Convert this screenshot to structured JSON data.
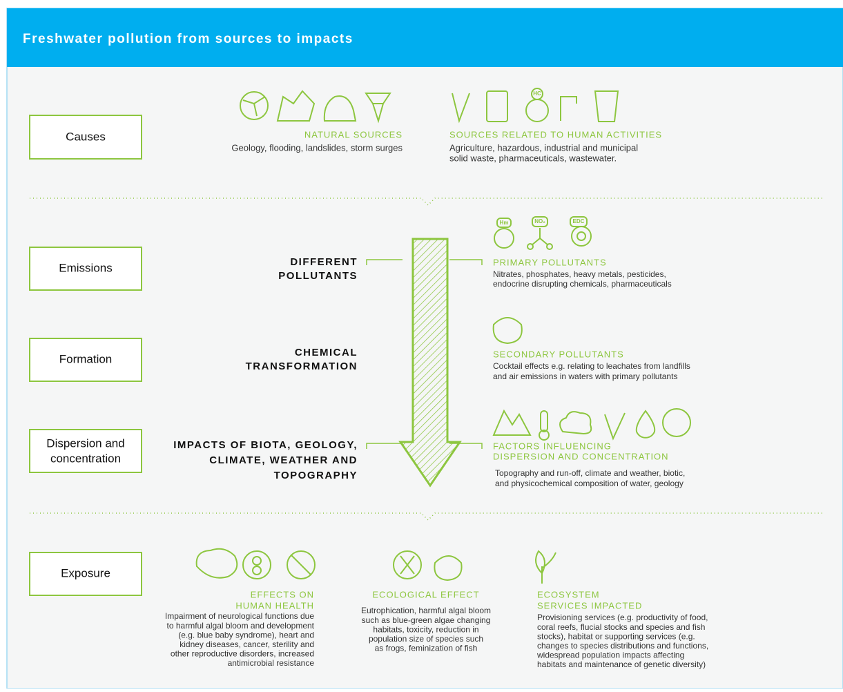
{
  "header": {
    "title": "Freshwater pollution from sources to impacts"
  },
  "stages": [
    "Causes",
    "Emissions",
    "Formation",
    [
      "Dispersion and",
      "concentration"
    ],
    "Exposure"
  ],
  "causes": {
    "natural": {
      "title": "NATURAL SOURCES",
      "lines": [
        "Geology, flooding, landslides, storm surges"
      ]
    },
    "human": {
      "title": "SOURCES RELATED TO HUMAN ACTIVITIES",
      "icon_label": "HC",
      "lines": [
        "Agriculture, hazardous, industrial and municipal",
        "solid waste, pharmaceuticals, wastewater."
      ]
    }
  },
  "process": {
    "left": [
      [
        "DIFFERENT",
        "POLLUTANTS"
      ],
      [
        "CHEMICAL",
        "TRANSFORMATION"
      ],
      [
        "IMPACTS OF BIOTA, GEOLOGY,",
        "CLIMATE, WEATHER AND",
        "TOPOGRAPHY"
      ]
    ],
    "primary": {
      "icon_labels": [
        "Hm",
        "NO₂",
        "EDC"
      ],
      "title": [
        "PRIMARY POLLUTANTS"
      ],
      "lines": [
        "Nitrates, phosphates, heavy metals, pesticides,",
        "endocrine disrupting chemicals, pharmaceuticals"
      ]
    },
    "secondary": {
      "title": [
        "SECONDARY POLLUTANTS"
      ],
      "lines": [
        "Cocktail effects e.g. relating to leachates from landfills",
        "and air emissions in waters with primary pollutants"
      ]
    },
    "factors": {
      "title": [
        "FACTORS INFLUENCING",
        "DISPERSION AND CONCENTRATION"
      ],
      "lines": [
        "Topography and run-off, climate and weather, biotic,",
        "and physicochemical composition of water, geology"
      ]
    }
  },
  "exposure": {
    "health": {
      "title": [
        "EFFECTS ON",
        "HUMAN HEALTH"
      ],
      "lines": [
        "Impairment of neurological functions due",
        "to harmful algal bloom and development",
        "(e.g. blue baby syndrome), heart and",
        "kidney diseases, cancer, sterility and",
        "other reproductive disorders, increased",
        "antimicrobial resistance"
      ]
    },
    "ecological": {
      "title": [
        "ECOLOGICAL EFFECT"
      ],
      "lines": [
        "Eutrophication, harmful algal bloom",
        "such as blue-green algae changing",
        "habitats, toxicity, reduction in",
        "population size of species such",
        "as frogs, feminization of fish"
      ]
    },
    "ecosystem": {
      "title": [
        "ECOSYSTEM",
        "SERVICES IMPACTED"
      ],
      "lines": [
        "Provisioning services (e.g. productivity of food,",
        "coral reefs, flucial stocks and species and fish",
        "stocks), habitat or supporting services (e.g.",
        "changes to species distributions and functions,",
        "widespread population impacts affecting",
        "habitats and maintenance of genetic diversity)"
      ]
    }
  }
}
